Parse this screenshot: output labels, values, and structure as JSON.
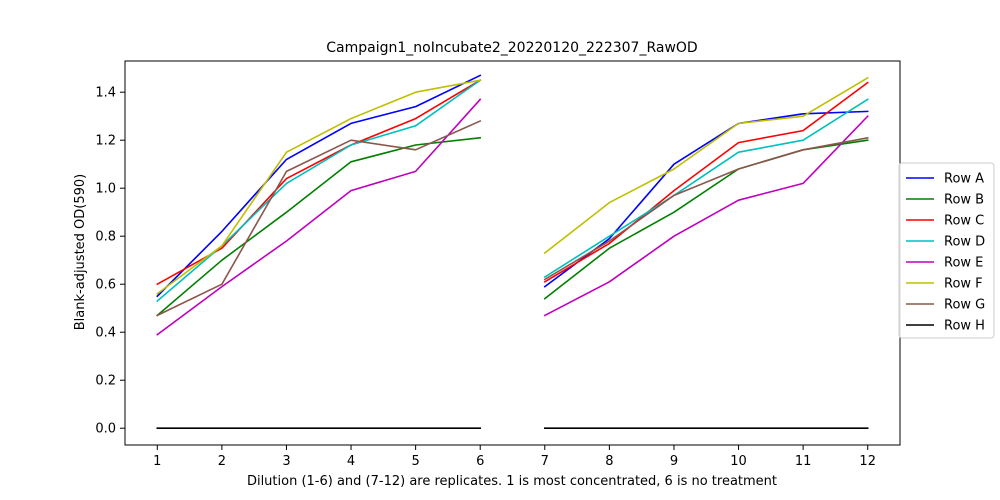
{
  "chart_data": {
    "type": "line",
    "title": "Campaign1_noIncubate2_20220120_222307_RawOD",
    "xlabel": "Dilution (1-6) and (7-12) are replicates. 1 is most concentrated, 6 is no treatment",
    "ylabel": "Blank-adjusted OD(590)",
    "xlim": [
      0.5,
      12.5
    ],
    "ylim": [
      -0.07,
      1.53
    ],
    "x_ticks": [
      1,
      2,
      3,
      4,
      5,
      6,
      7,
      8,
      9,
      10,
      11,
      12
    ],
    "y_ticks": [
      0.0,
      0.2,
      0.4,
      0.6,
      0.8,
      1.0,
      1.2,
      1.4
    ],
    "grid": false,
    "legend_position": "right",
    "segments": [
      [
        1,
        2,
        3,
        4,
        5,
        6
      ],
      [
        7,
        8,
        9,
        10,
        11,
        12
      ]
    ],
    "series": [
      {
        "name": "Row A",
        "color": "#0000ff",
        "values": [
          0.55,
          0.82,
          1.12,
          1.27,
          1.34,
          1.47,
          0.59,
          0.79,
          1.1,
          1.27,
          1.31,
          1.32
        ]
      },
      {
        "name": "Row B",
        "color": "#008000",
        "values": [
          0.47,
          0.7,
          0.9,
          1.11,
          1.18,
          1.21,
          0.54,
          0.75,
          0.9,
          1.08,
          1.16,
          1.2
        ]
      },
      {
        "name": "Row C",
        "color": "#ff0000",
        "values": [
          0.6,
          0.75,
          1.04,
          1.18,
          1.29,
          1.45,
          0.61,
          0.77,
          0.99,
          1.19,
          1.24,
          1.44
        ]
      },
      {
        "name": "Row D",
        "color": "#00bfbf",
        "values": [
          0.53,
          0.76,
          1.02,
          1.18,
          1.26,
          1.45,
          0.63,
          0.8,
          0.97,
          1.15,
          1.2,
          1.37
        ]
      },
      {
        "name": "Row E",
        "color": "#bf00bf",
        "values": [
          0.39,
          0.59,
          0.78,
          0.99,
          1.07,
          1.37,
          0.47,
          0.61,
          0.8,
          0.95,
          1.02,
          1.3
        ]
      },
      {
        "name": "Row F",
        "color": "#bfbf00",
        "values": [
          0.56,
          0.76,
          1.15,
          1.29,
          1.4,
          1.45,
          0.73,
          0.94,
          1.08,
          1.27,
          1.3,
          1.46
        ]
      },
      {
        "name": "Row G",
        "color": "#8c564b",
        "values": [
          0.47,
          0.6,
          1.07,
          1.2,
          1.16,
          1.28,
          0.62,
          0.78,
          0.97,
          1.08,
          1.16,
          1.21
        ]
      },
      {
        "name": "Row H",
        "color": "#000000",
        "values": [
          0.0,
          0.0,
          0.0,
          0.0,
          0.0,
          0.0,
          0.0,
          0.0,
          0.0,
          0.0,
          0.0,
          0.0
        ]
      }
    ]
  }
}
